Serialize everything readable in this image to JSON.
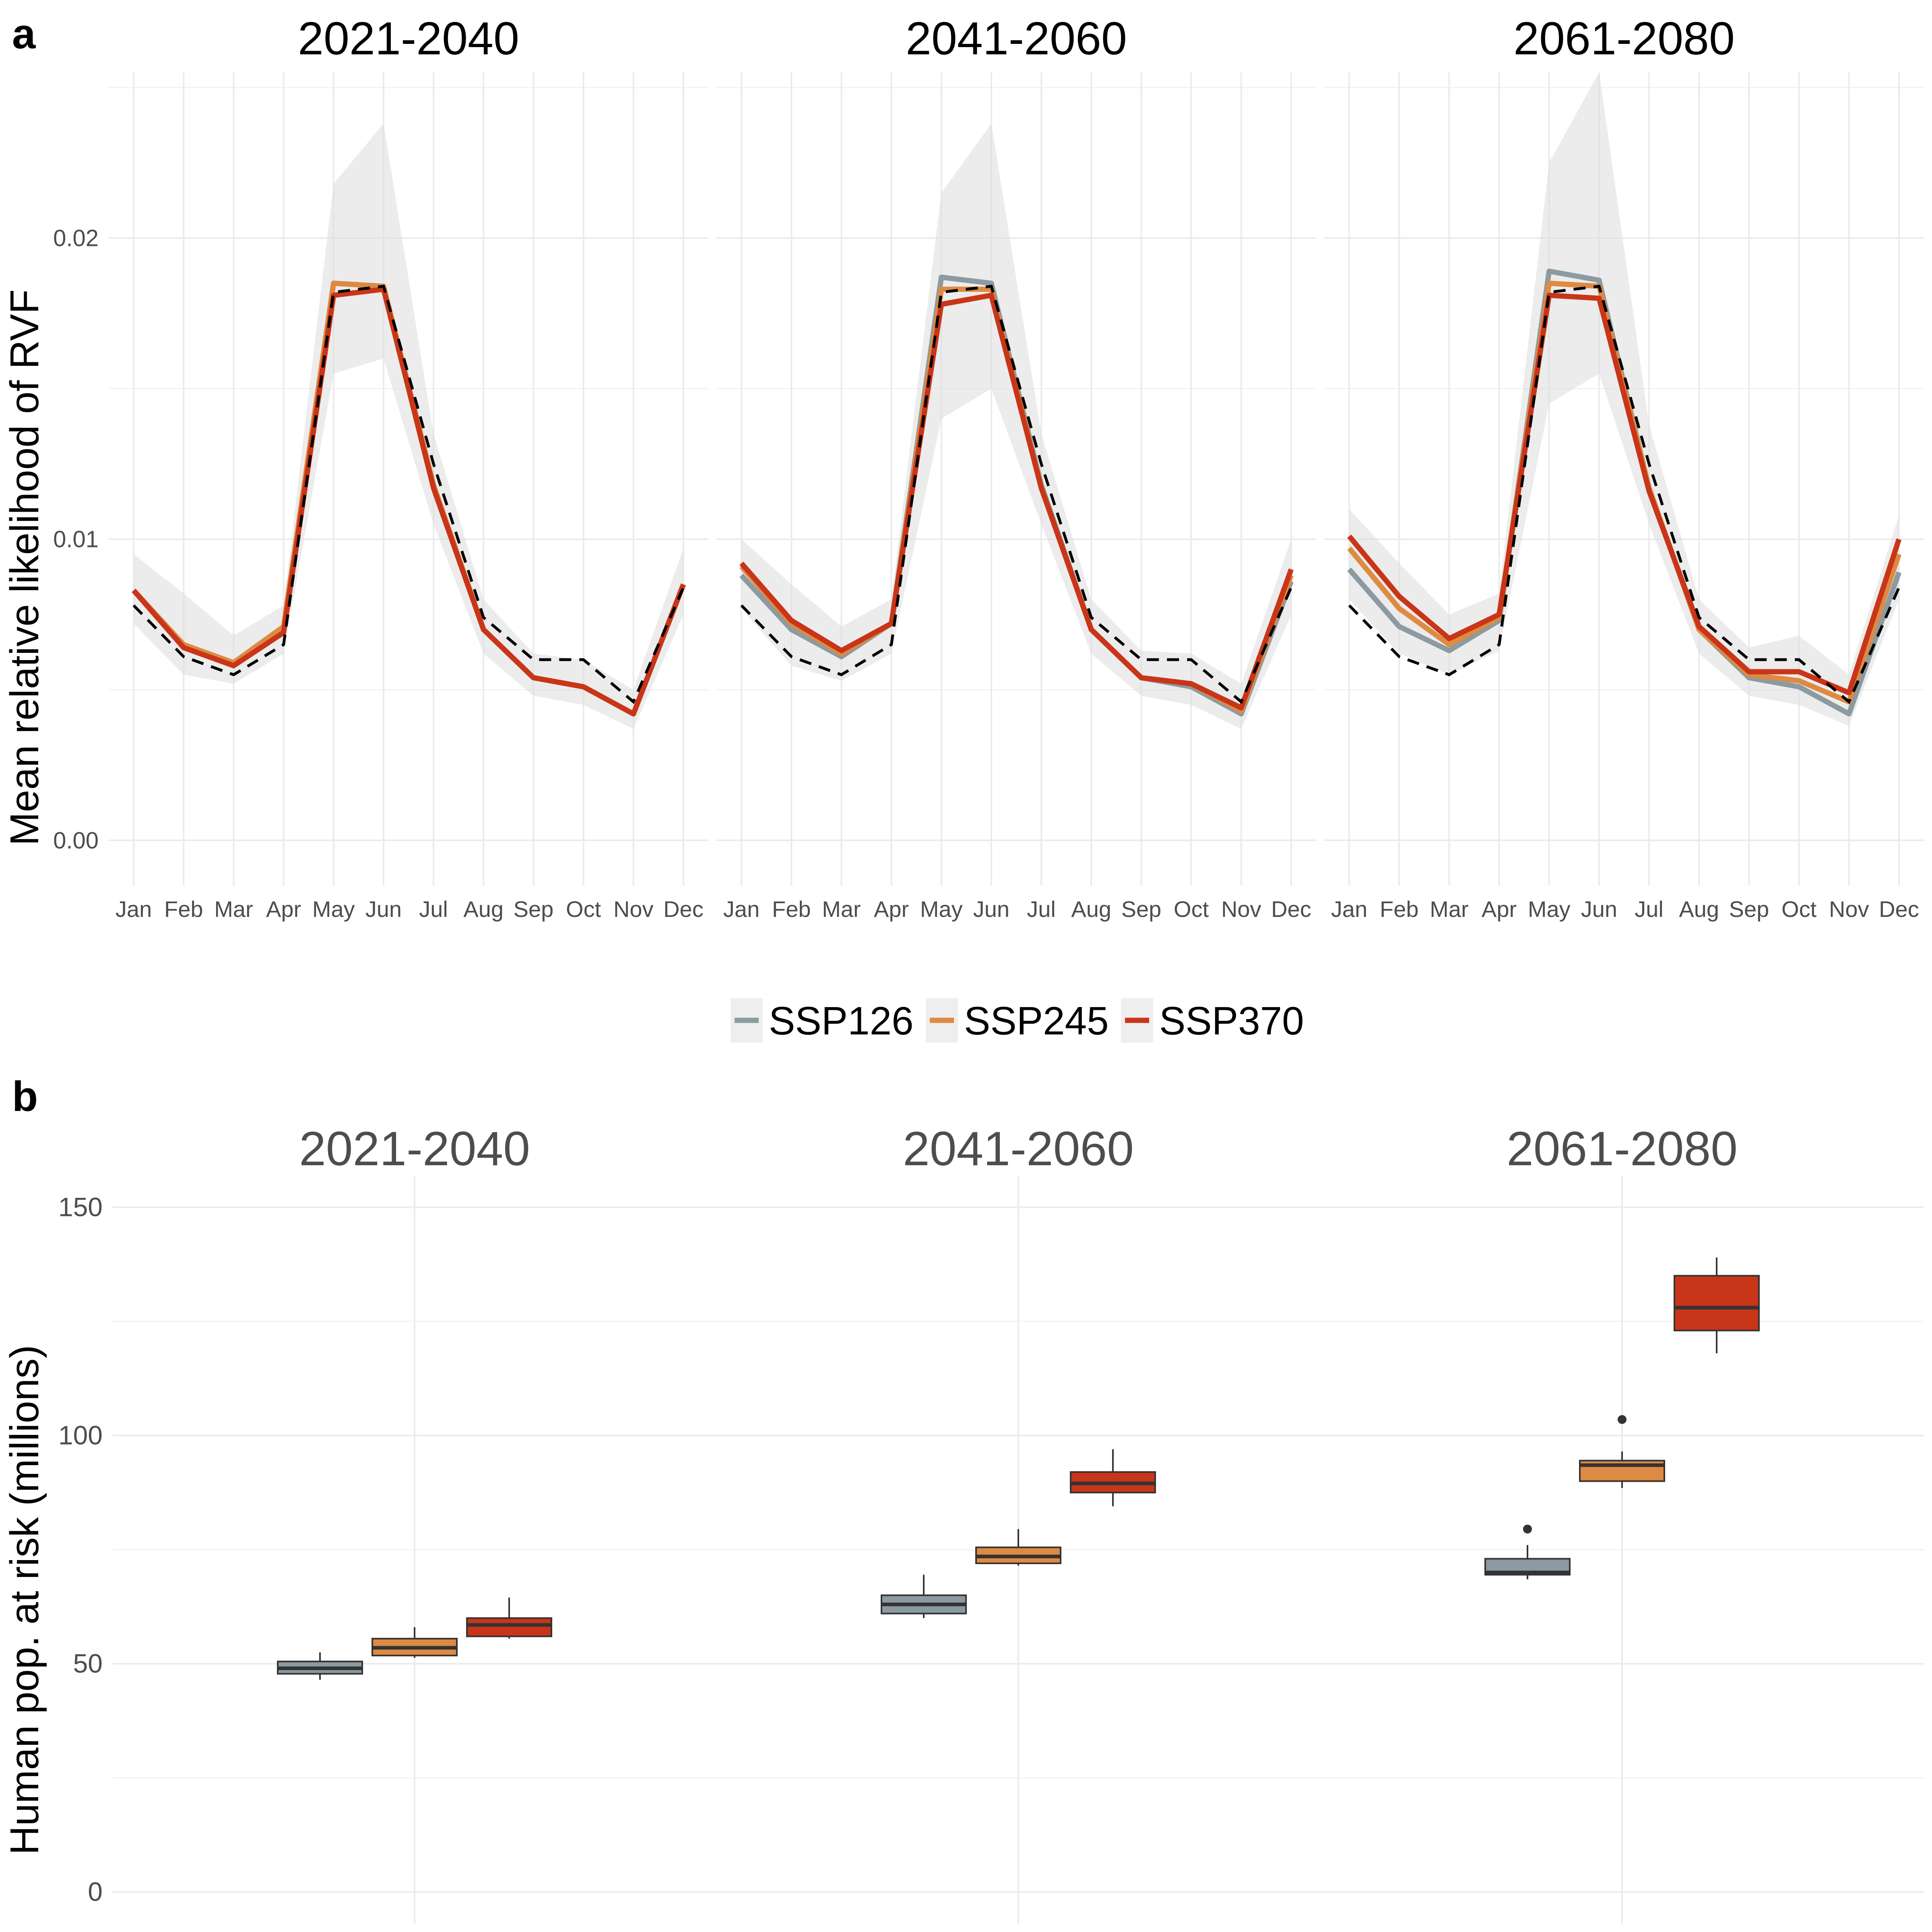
{
  "panel_a": {
    "label": "a",
    "y_axis_title": "Mean relative likelihood of RVF",
    "facets": [
      "2021-2040",
      "2041-2060",
      "2061-2080"
    ]
  },
  "panel_b": {
    "label": "b",
    "y_axis_title": "Human pop. at risk (millions)",
    "facets": [
      "2021-2040",
      "2041-2060",
      "2061-2080"
    ]
  },
  "legend": {
    "items": [
      {
        "label": "SSP126",
        "color": "#8c9aa1"
      },
      {
        "label": "SSP245",
        "color": "#de8a42"
      },
      {
        "label": "SSP370",
        "color": "#c93518"
      }
    ]
  },
  "chart_data": [
    {
      "type": "line",
      "panel": "a",
      "facets": [
        "2021-2040",
        "2041-2060",
        "2061-2080"
      ],
      "ylabel": "Mean relative likelihood of RVF",
      "xlabel": "",
      "categories": [
        "Jan",
        "Feb",
        "Mar",
        "Apr",
        "May",
        "Jun",
        "Jul",
        "Aug",
        "Sep",
        "Oct",
        "Nov",
        "Dec"
      ],
      "yticks": [
        "0.00",
        "0.01",
        "0.02"
      ],
      "ylim": [
        -0.0015,
        0.0255
      ],
      "grid": true,
      "legend_position": "bottom",
      "baseline": {
        "style": "dashed",
        "color": "#000000",
        "values": [
          0.0078,
          0.0061,
          0.0055,
          0.0065,
          0.0182,
          0.0184,
          0.0125,
          0.0074,
          0.006,
          0.006,
          0.0046,
          0.0084
        ]
      },
      "panels": [
        {
          "facet": "2021-2040",
          "series": [
            {
              "name": "SSP126",
              "color": "#8c9aa1",
              "values": [
                0.0083,
                0.0065,
                0.0058,
                0.007,
                0.0185,
                0.0184,
                0.0118,
                0.007,
                0.0054,
                0.0051,
                0.0042,
                0.0085
              ]
            },
            {
              "name": "SSP245",
              "color": "#de8a42",
              "values": [
                0.0083,
                0.0065,
                0.0059,
                0.0071,
                0.0185,
                0.0184,
                0.0118,
                0.007,
                0.0054,
                0.0051,
                0.0042,
                0.0085
              ]
            },
            {
              "name": "SSP370",
              "color": "#c93518",
              "values": [
                0.0083,
                0.0064,
                0.0058,
                0.0069,
                0.0181,
                0.0183,
                0.0117,
                0.007,
                0.0054,
                0.0051,
                0.0042,
                0.0085
              ]
            }
          ],
          "band": {
            "upper": [
              0.0095,
              0.0082,
              0.0068,
              0.0078,
              0.0218,
              0.0238,
              0.0135,
              0.008,
              0.0062,
              0.006,
              0.005,
              0.0097
            ],
            "lower": [
              0.0072,
              0.0055,
              0.0052,
              0.0062,
              0.0155,
              0.016,
              0.0105,
              0.0062,
              0.0048,
              0.0045,
              0.0037,
              0.0075
            ]
          }
        },
        {
          "facet": "2041-2060",
          "series": [
            {
              "name": "SSP126",
              "color": "#8c9aa1",
              "values": [
                0.0088,
                0.007,
                0.0061,
                0.0072,
                0.0187,
                0.0185,
                0.0118,
                0.007,
                0.0054,
                0.0051,
                0.0042,
                0.0086
              ]
            },
            {
              "name": "SSP245",
              "color": "#de8a42",
              "values": [
                0.0091,
                0.0072,
                0.0062,
                0.0072,
                0.0183,
                0.0183,
                0.0117,
                0.007,
                0.0054,
                0.0052,
                0.0043,
                0.0088
              ]
            },
            {
              "name": "SSP370",
              "color": "#c93518",
              "values": [
                0.0092,
                0.0073,
                0.0063,
                0.0072,
                0.0178,
                0.0181,
                0.0117,
                0.007,
                0.0054,
                0.0052,
                0.0044,
                0.009
              ]
            }
          ],
          "band": {
            "upper": [
              0.01,
              0.0085,
              0.0071,
              0.008,
              0.0215,
              0.0238,
              0.0135,
              0.008,
              0.0063,
              0.0062,
              0.0052,
              0.01
            ],
            "lower": [
              0.0077,
              0.0058,
              0.0053,
              0.0062,
              0.014,
              0.015,
              0.0105,
              0.0062,
              0.0048,
              0.0045,
              0.0037,
              0.0075
            ]
          }
        },
        {
          "facet": "2061-2080",
          "series": [
            {
              "name": "SSP126",
              "color": "#8c9aa1",
              "values": [
                0.009,
                0.0071,
                0.0063,
                0.0073,
                0.0189,
                0.0186,
                0.0117,
                0.007,
                0.0054,
                0.0051,
                0.0042,
                0.0089
              ]
            },
            {
              "name": "SSP245",
              "color": "#de8a42",
              "values": [
                0.0097,
                0.0077,
                0.0065,
                0.0074,
                0.0185,
                0.0184,
                0.0117,
                0.007,
                0.0055,
                0.0053,
                0.0046,
                0.0095
              ]
            },
            {
              "name": "SSP370",
              "color": "#c93518",
              "values": [
                0.0101,
                0.0081,
                0.0067,
                0.0075,
                0.0181,
                0.018,
                0.0116,
                0.0071,
                0.0056,
                0.0056,
                0.0049,
                0.01
              ]
            }
          ],
          "band": {
            "upper": [
              0.011,
              0.0092,
              0.0075,
              0.0082,
              0.0225,
              0.0255,
              0.0138,
              0.008,
              0.0064,
              0.0068,
              0.0055,
              0.0108
            ],
            "lower": [
              0.008,
              0.0062,
              0.0055,
              0.0063,
              0.0145,
              0.0155,
              0.0105,
              0.0062,
              0.0048,
              0.0045,
              0.0038,
              0.008
            ]
          }
        }
      ]
    },
    {
      "type": "box",
      "panel": "b",
      "facets": [
        "2021-2040",
        "2041-2060",
        "2061-2080"
      ],
      "ylabel": "Human pop. at risk (millions)",
      "xlabel": "",
      "yticks": [
        0,
        50,
        100,
        150
      ],
      "ylim": [
        -7,
        157
      ],
      "grid": true,
      "groups": [
        {
          "facet": "2021-2040",
          "boxes": [
            {
              "name": "SSP126",
              "color": "#8c9aa1",
              "min": 46.5,
              "q1": 47.8,
              "median": 49.0,
              "q3": 50.5,
              "max": 52.5,
              "outliers": []
            },
            {
              "name": "SSP245",
              "color": "#de8a42",
              "min": 51.3,
              "q1": 51.8,
              "median": 53.5,
              "q3": 55.5,
              "max": 58.0,
              "outliers": []
            },
            {
              "name": "SSP370",
              "color": "#c93518",
              "min": 55.5,
              "q1": 56.0,
              "median": 58.5,
              "q3": 60.0,
              "max": 64.5,
              "outliers": []
            }
          ]
        },
        {
          "facet": "2041-2060",
          "boxes": [
            {
              "name": "SSP126",
              "color": "#8c9aa1",
              "min": 60.0,
              "q1": 61.0,
              "median": 63.0,
              "q3": 65.0,
              "max": 69.5,
              "outliers": []
            },
            {
              "name": "SSP245",
              "color": "#de8a42",
              "min": 71.5,
              "q1": 72.0,
              "median": 73.5,
              "q3": 75.5,
              "max": 79.5,
              "outliers": []
            },
            {
              "name": "SSP370",
              "color": "#c93518",
              "min": 84.5,
              "q1": 87.5,
              "median": 89.5,
              "q3": 92.0,
              "max": 97.0,
              "outliers": []
            }
          ]
        },
        {
          "facet": "2061-2080",
          "boxes": [
            {
              "name": "SSP126",
              "color": "#8c9aa1",
              "min": 68.5,
              "q1": 69.5,
              "median": 70.0,
              "q3": 73.0,
              "max": 76.0,
              "outliers": [
                79.5
              ]
            },
            {
              "name": "SSP245",
              "color": "#de8a42",
              "min": 88.5,
              "q1": 90.0,
              "median": 93.5,
              "q3": 94.5,
              "max": 96.5,
              "outliers": [
                103.5
              ]
            },
            {
              "name": "SSP370",
              "color": "#c93518",
              "min": 118.0,
              "q1": 123.0,
              "median": 128.0,
              "q3": 135.0,
              "max": 139.0,
              "outliers": []
            }
          ]
        }
      ]
    }
  ]
}
